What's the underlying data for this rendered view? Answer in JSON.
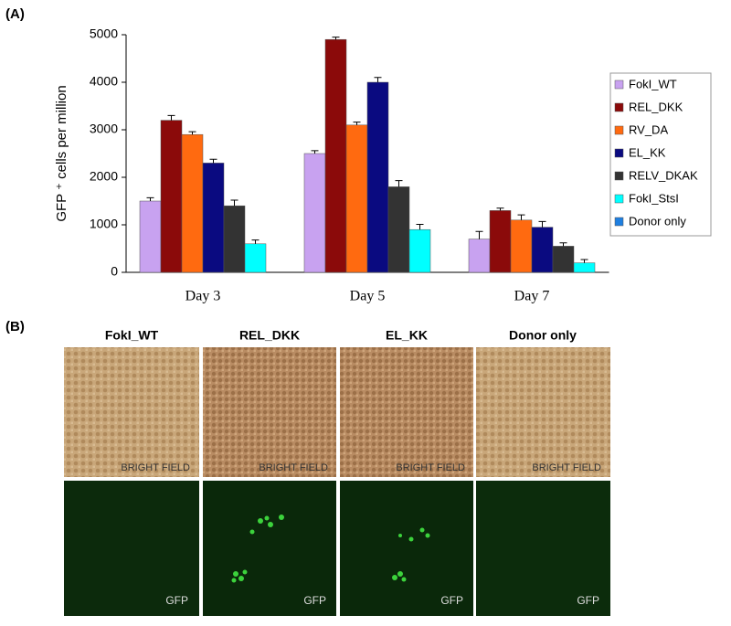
{
  "panel_labels": [
    "(A)",
    "(B)"
  ],
  "chart_data": {
    "type": "bar",
    "ylabel": "GFP ⁺ cells per million",
    "categories": [
      "Day 3",
      "Day 5",
      "Day 7"
    ],
    "ylim": [
      0,
      5000
    ],
    "yticks": [
      0,
      1000,
      2000,
      3000,
      4000,
      5000
    ],
    "series": [
      {
        "name": "FokI_WT",
        "color": "#c8a2f0",
        "values": [
          1500,
          2500,
          700
        ],
        "errors": [
          70,
          60,
          160
        ]
      },
      {
        "name": "REL_DKK",
        "color": "#8b0a0a",
        "values": [
          3200,
          4900,
          1300
        ],
        "errors": [
          100,
          50,
          50
        ]
      },
      {
        "name": "RV_DA",
        "color": "#ff6a10",
        "values": [
          2900,
          3100,
          1100
        ],
        "errors": [
          60,
          60,
          110
        ]
      },
      {
        "name": "EL_KK",
        "color": "#0a0a80",
        "values": [
          2300,
          4000,
          950
        ],
        "errors": [
          80,
          100,
          120
        ]
      },
      {
        "name": "RELV_DKAK",
        "color": "#333333",
        "values": [
          1400,
          1800,
          550
        ],
        "errors": [
          120,
          130,
          70
        ]
      },
      {
        "name": "FokI_StsI",
        "color": "#00ffff",
        "values": [
          600,
          900,
          200
        ],
        "errors": [
          80,
          110,
          70
        ]
      },
      {
        "name": "Donor only",
        "color": "#1e7fe0",
        "values": [
          0,
          0,
          0
        ],
        "errors": [
          0,
          0,
          0
        ]
      }
    ]
  },
  "panel_b": {
    "columns": [
      "FokI_WT",
      "REL_DKK",
      "EL_KK",
      "Donor only"
    ],
    "rows": [
      {
        "label": "BRIGHT FIELD"
      },
      {
        "label": "GFP"
      }
    ]
  }
}
